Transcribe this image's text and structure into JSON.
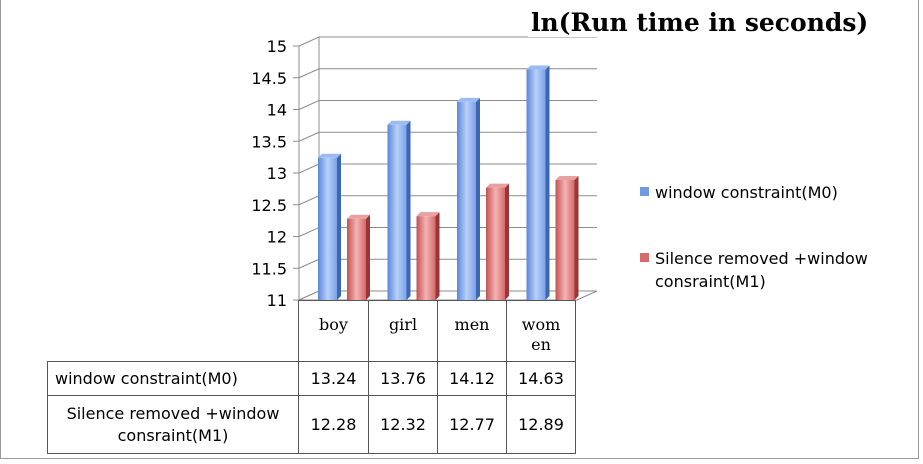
{
  "chart_data": {
    "type": "bar",
    "title": "ln(Run time in seconds)",
    "categories": [
      "boy",
      "girl",
      "men",
      "wom\nen"
    ],
    "series": [
      {
        "name": "window constraint(M0)",
        "values": [
          13.24,
          13.76,
          14.12,
          14.63
        ],
        "color": "#6f9ae0"
      },
      {
        "name": "Silence removed +window consraint(M1)",
        "values": [
          12.28,
          12.32,
          12.77,
          12.89
        ],
        "color": "#d56b6b"
      }
    ],
    "ylim": [
      11,
      15
    ],
    "yticks": [
      "11",
      "11.5",
      "12",
      "12.5",
      "13",
      "13.5",
      "14",
      "14.5",
      "15"
    ],
    "grid": true,
    "legend": "right",
    "data_table": {
      "rows": [
        {
          "label": "window constraint(M0)",
          "cells": [
            "13.24",
            "13.76",
            "14.12",
            "14.63"
          ]
        },
        {
          "label": "Silence removed +window consraint(M1)",
          "cells": [
            "12.28",
            "12.32",
            "12.77",
            "12.89"
          ]
        }
      ]
    }
  }
}
